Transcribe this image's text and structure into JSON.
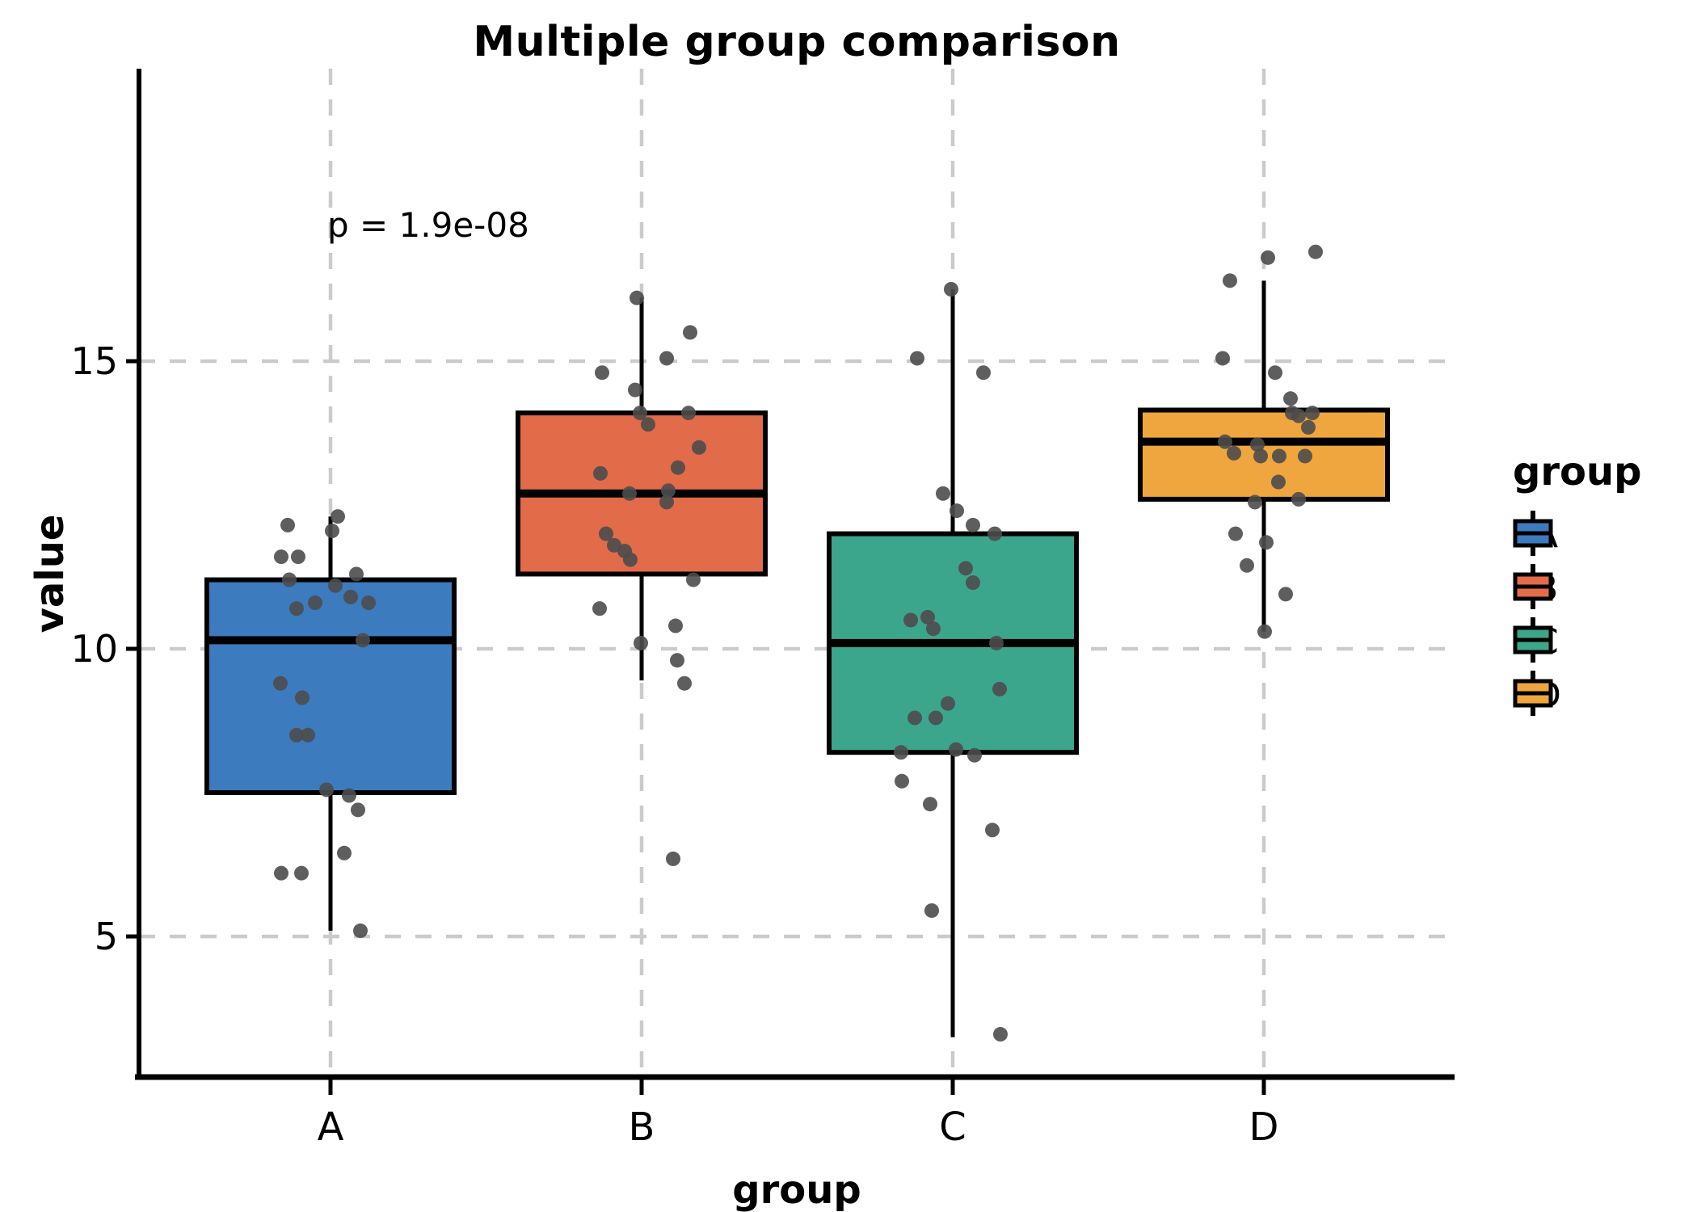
{
  "title": "Multiple group comparison",
  "annotation": {
    "p_label": "p = 1.9e-08"
  },
  "axes": {
    "x_title": "group",
    "y_title": "value",
    "x_ticks": [
      "A",
      "B",
      "C",
      "D"
    ],
    "y_ticks": [
      15,
      10,
      5
    ]
  },
  "legend": {
    "title": "group",
    "entries": [
      {
        "label": "A",
        "color": "#3B7BBE"
      },
      {
        "label": "B",
        "color": "#E26B4A"
      },
      {
        "label": "C",
        "color": "#3CA68C"
      },
      {
        "label": "D",
        "color": "#EFA63E"
      }
    ]
  },
  "style": {
    "grid_color": "#CBCBCB",
    "axis_color": "#000000",
    "dot_color": "#4D4D4D",
    "background": "#FFFFFF"
  },
  "chart_data": {
    "type": "boxplot",
    "overlay": "jittered points",
    "title": "Multiple group comparison",
    "xlabel": "group",
    "ylabel": "value",
    "ylim": [
      2.5,
      19
    ],
    "grid": "dashed, at x groups and y 5/10/15",
    "legend_position": "right",
    "categories": [
      "A",
      "B",
      "C",
      "D"
    ],
    "groups": [
      {
        "name": "A",
        "color": "#3B7BBE",
        "box": {
          "whisker_low": 5.1,
          "q1": 7.5,
          "median": 10.15,
          "q3": 11.2,
          "whisker_high": 12.3
        },
        "points": [
          {
            "v": 12.3,
            "j": 9
          },
          {
            "v": 12.05,
            "j": 2
          },
          {
            "v": 12.15,
            "j": -53
          },
          {
            "v": 11.6,
            "j": -61
          },
          {
            "v": 11.6,
            "j": -40
          },
          {
            "v": 11.2,
            "j": -51
          },
          {
            "v": 11.3,
            "j": 32
          },
          {
            "v": 11.1,
            "j": 6
          },
          {
            "v": 10.9,
            "j": 25
          },
          {
            "v": 10.8,
            "j": 47
          },
          {
            "v": 10.7,
            "j": -42
          },
          {
            "v": 10.8,
            "j": -19
          },
          {
            "v": 10.15,
            "j": 40
          },
          {
            "v": 9.4,
            "j": -62
          },
          {
            "v": 9.15,
            "j": -35
          },
          {
            "v": 8.5,
            "j": -42
          },
          {
            "v": 8.5,
            "j": -28
          },
          {
            "v": 7.55,
            "j": -5
          },
          {
            "v": 7.45,
            "j": 23
          },
          {
            "v": 7.2,
            "j": 34
          },
          {
            "v": 6.45,
            "j": 17
          },
          {
            "v": 6.1,
            "j": -61
          },
          {
            "v": 6.1,
            "j": -36
          },
          {
            "v": 5.1,
            "j": 37
          }
        ]
      },
      {
        "name": "B",
        "color": "#E26B4A",
        "box": {
          "whisker_low": 9.45,
          "q1": 11.3,
          "median": 12.7,
          "q3": 14.1,
          "whisker_high": 16.1
        },
        "points": [
          {
            "v": 16.1,
            "j": -6
          },
          {
            "v": 15.5,
            "j": 60
          },
          {
            "v": 15.05,
            "j": 31
          },
          {
            "v": 14.8,
            "j": -49
          },
          {
            "v": 14.5,
            "j": -8
          },
          {
            "v": 14.1,
            "j": -2
          },
          {
            "v": 14.1,
            "j": 58
          },
          {
            "v": 13.9,
            "j": 8
          },
          {
            "v": 13.5,
            "j": 71
          },
          {
            "v": 13.15,
            "j": 45
          },
          {
            "v": 13.05,
            "j": -51
          },
          {
            "v": 12.75,
            "j": 33
          },
          {
            "v": 12.7,
            "j": -15
          },
          {
            "v": 12.55,
            "j": 31
          },
          {
            "v": 12.0,
            "j": -44
          },
          {
            "v": 11.8,
            "j": -34
          },
          {
            "v": 11.7,
            "j": -21
          },
          {
            "v": 11.55,
            "j": -14
          },
          {
            "v": 11.2,
            "j": 64
          },
          {
            "v": 10.7,
            "j": -52
          },
          {
            "v": 10.4,
            "j": 42
          },
          {
            "v": 10.1,
            "j": -1
          },
          {
            "v": 9.8,
            "j": 44
          },
          {
            "v": 9.4,
            "j": 53
          },
          {
            "v": 6.35,
            "j": 39
          }
        ]
      },
      {
        "name": "C",
        "color": "#3CA68C",
        "box": {
          "whisker_low": 3.25,
          "q1": 8.2,
          "median": 10.1,
          "q3": 12.0,
          "whisker_high": 16.25
        },
        "points": [
          {
            "v": 16.25,
            "j": -2
          },
          {
            "v": 15.05,
            "j": -44
          },
          {
            "v": 14.8,
            "j": 38
          },
          {
            "v": 12.7,
            "j": -12
          },
          {
            "v": 12.4,
            "j": 5
          },
          {
            "v": 12.15,
            "j": 25
          },
          {
            "v": 12.0,
            "j": 52
          },
          {
            "v": 11.4,
            "j": 16
          },
          {
            "v": 11.15,
            "j": 25
          },
          {
            "v": 10.55,
            "j": -31
          },
          {
            "v": 10.5,
            "j": -52
          },
          {
            "v": 10.35,
            "j": -24
          },
          {
            "v": 10.1,
            "j": 54
          },
          {
            "v": 9.3,
            "j": 58
          },
          {
            "v": 9.05,
            "j": -6
          },
          {
            "v": 8.8,
            "j": -47
          },
          {
            "v": 8.8,
            "j": -21
          },
          {
            "v": 8.25,
            "j": 4
          },
          {
            "v": 8.2,
            "j": -64
          },
          {
            "v": 8.15,
            "j": 27
          },
          {
            "v": 7.7,
            "j": -63
          },
          {
            "v": 7.3,
            "j": -28
          },
          {
            "v": 6.85,
            "j": 49
          },
          {
            "v": 5.45,
            "j": -26
          },
          {
            "v": 3.3,
            "j": 59
          }
        ]
      },
      {
        "name": "D",
        "color": "#EFA63E",
        "box": {
          "whisker_low": 10.3,
          "q1": 12.6,
          "median": 13.6,
          "q3": 14.15,
          "whisker_high": 16.4
        },
        "points": [
          {
            "v": 16.9,
            "j": 64
          },
          {
            "v": 16.8,
            "j": 5
          },
          {
            "v": 16.4,
            "j": -42
          },
          {
            "v": 15.05,
            "j": -51
          },
          {
            "v": 14.8,
            "j": 14
          },
          {
            "v": 14.35,
            "j": 33
          },
          {
            "v": 14.1,
            "j": 35
          },
          {
            "v": 14.05,
            "j": 43
          },
          {
            "v": 14.1,
            "j": 60
          },
          {
            "v": 13.85,
            "j": 55
          },
          {
            "v": 13.6,
            "j": -48
          },
          {
            "v": 13.55,
            "j": -8
          },
          {
            "v": 13.4,
            "j": -37
          },
          {
            "v": 13.35,
            "j": -4
          },
          {
            "v": 13.35,
            "j": 19
          },
          {
            "v": 13.35,
            "j": 51
          },
          {
            "v": 12.9,
            "j": 18
          },
          {
            "v": 12.55,
            "j": -11
          },
          {
            "v": 12.6,
            "j": 43
          },
          {
            "v": 12.0,
            "j": -35
          },
          {
            "v": 11.85,
            "j": 3
          },
          {
            "v": 11.45,
            "j": -21
          },
          {
            "v": 10.95,
            "j": 27
          },
          {
            "v": 10.3,
            "j": 1
          }
        ]
      }
    ]
  }
}
